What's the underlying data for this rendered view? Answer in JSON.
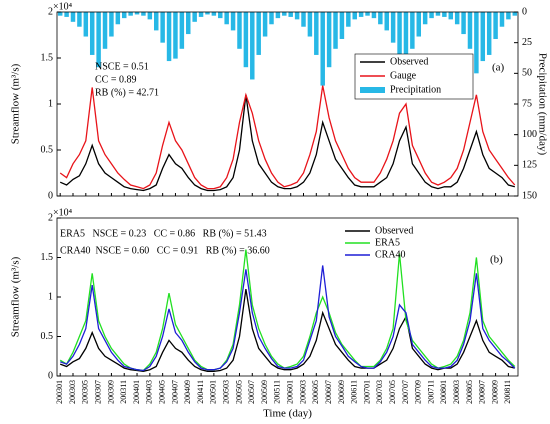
{
  "chart_data": [
    {
      "type": "line",
      "y_multiplier": "×10⁴",
      "y_label": "Streamflow (m³/s)",
      "y2_label": "Precipitation (mm/day)",
      "ylim": [
        0,
        2
      ],
      "yticks": [
        0,
        0.5,
        1,
        1.5,
        2
      ],
      "y2lim": [
        150,
        0
      ],
      "y2ticks": [
        0,
        25,
        50,
        75,
        100,
        125,
        150
      ],
      "annotations": [
        "NSCE = 0.51",
        "CC = 0.89",
        "RB (%) = 42.71"
      ],
      "panel_label": "(a)",
      "series": [
        {
          "name": "Observed",
          "color": "#000000",
          "values": [
            0.15,
            0.12,
            0.18,
            0.22,
            0.35,
            0.55,
            0.35,
            0.25,
            0.2,
            0.15,
            0.1,
            0.08,
            0.07,
            0.06,
            0.08,
            0.12,
            0.3,
            0.45,
            0.35,
            0.3,
            0.2,
            0.12,
            0.08,
            0.06,
            0.06,
            0.07,
            0.1,
            0.2,
            0.5,
            1.1,
            0.6,
            0.35,
            0.25,
            0.15,
            0.1,
            0.08,
            0.08,
            0.1,
            0.15,
            0.25,
            0.45,
            0.8,
            0.6,
            0.4,
            0.3,
            0.2,
            0.12,
            0.1,
            0.1,
            0.1,
            0.15,
            0.2,
            0.35,
            0.6,
            0.75,
            0.35,
            0.25,
            0.15,
            0.1,
            0.08,
            0.1,
            0.1,
            0.15,
            0.3,
            0.5,
            0.7,
            0.45,
            0.3,
            0.25,
            0.2,
            0.12,
            0.1
          ]
        },
        {
          "name": "Gauge",
          "color": "#e8141a",
          "values": [
            0.25,
            0.2,
            0.35,
            0.45,
            0.6,
            1.18,
            0.6,
            0.45,
            0.35,
            0.25,
            0.18,
            0.12,
            0.1,
            0.08,
            0.12,
            0.25,
            0.55,
            0.8,
            0.6,
            0.5,
            0.35,
            0.2,
            0.12,
            0.08,
            0.08,
            0.1,
            0.2,
            0.4,
            0.8,
            1.1,
            0.9,
            0.6,
            0.4,
            0.25,
            0.15,
            0.1,
            0.12,
            0.15,
            0.25,
            0.45,
            0.7,
            1.2,
            0.85,
            0.6,
            0.45,
            0.3,
            0.2,
            0.15,
            0.15,
            0.15,
            0.25,
            0.4,
            0.6,
            0.9,
            1.0,
            0.55,
            0.4,
            0.25,
            0.15,
            0.12,
            0.15,
            0.2,
            0.3,
            0.5,
            0.8,
            1.1,
            0.7,
            0.5,
            0.4,
            0.3,
            0.2,
            0.12
          ]
        },
        {
          "name": "Precipitation",
          "color": "#27b8e6",
          "kind": "bar",
          "axis": "y2",
          "values": [
            3,
            4,
            8,
            12,
            20,
            35,
            45,
            30,
            20,
            10,
            5,
            3,
            2,
            3,
            6,
            15,
            25,
            40,
            38,
            30,
            18,
            8,
            4,
            2,
            3,
            5,
            10,
            15,
            30,
            45,
            55,
            35,
            20,
            10,
            5,
            3,
            4,
            6,
            12,
            20,
            35,
            60,
            45,
            30,
            22,
            12,
            6,
            4,
            3,
            5,
            10,
            15,
            25,
            40,
            50,
            30,
            20,
            10,
            5,
            3,
            4,
            6,
            10,
            18,
            30,
            50,
            40,
            35,
            22,
            12,
            6,
            3
          ]
        }
      ]
    },
    {
      "type": "line",
      "y_multiplier": "×10⁴",
      "y_label": "Streamflow (m³/s)",
      "x_label": "Time (day)",
      "ylim": [
        0,
        2
      ],
      "yticks": [
        0,
        0.5,
        1,
        1.5,
        2
      ],
      "annotations": [
        "ERA5   NSCE = 0.23   CC = 0.86   RB (%) = 51.43",
        "CRA40  NSCE = 0.60   CC = 0.91   RB (%) = 36.60"
      ],
      "panel_label": "(b)",
      "categories": [
        "200301",
        null,
        "200303",
        null,
        "200305",
        null,
        "200307",
        null,
        "200309",
        null,
        "200311",
        null,
        "200401",
        null,
        "200403",
        null,
        "200405",
        null,
        "200407",
        null,
        "200409",
        null,
        "200411",
        null,
        "200501",
        null,
        "200503",
        null,
        "200505",
        null,
        "200507",
        null,
        "200509",
        null,
        "200511",
        null,
        "200601",
        null,
        "200603",
        null,
        "200605",
        null,
        "200607",
        null,
        "200609",
        null,
        "200611",
        null,
        "200701",
        null,
        "200703",
        null,
        "200705",
        null,
        "200707",
        null,
        "200709",
        null,
        "200711",
        null,
        "200801",
        null,
        "200803",
        null,
        "200805",
        null,
        "200807",
        null,
        "200809",
        null,
        "200811",
        null
      ],
      "series": [
        {
          "name": "Observed",
          "color": "#000000",
          "values": [
            0.15,
            0.12,
            0.18,
            0.22,
            0.35,
            0.55,
            0.35,
            0.25,
            0.2,
            0.15,
            0.1,
            0.08,
            0.07,
            0.06,
            0.08,
            0.12,
            0.3,
            0.45,
            0.35,
            0.3,
            0.2,
            0.12,
            0.08,
            0.06,
            0.06,
            0.07,
            0.1,
            0.2,
            0.5,
            1.1,
            0.6,
            0.35,
            0.25,
            0.15,
            0.1,
            0.08,
            0.08,
            0.1,
            0.15,
            0.25,
            0.45,
            0.8,
            0.6,
            0.4,
            0.3,
            0.2,
            0.12,
            0.1,
            0.1,
            0.1,
            0.15,
            0.2,
            0.35,
            0.6,
            0.75,
            0.35,
            0.25,
            0.15,
            0.1,
            0.08,
            0.1,
            0.1,
            0.15,
            0.3,
            0.5,
            0.7,
            0.45,
            0.3,
            0.25,
            0.2,
            0.12,
            0.1
          ]
        },
        {
          "name": "ERA5",
          "color": "#22e022",
          "values": [
            0.2,
            0.15,
            0.3,
            0.5,
            0.7,
            1.3,
            0.7,
            0.5,
            0.35,
            0.25,
            0.15,
            0.1,
            0.08,
            0.07,
            0.15,
            0.3,
            0.6,
            1.05,
            0.65,
            0.5,
            0.35,
            0.2,
            0.12,
            0.08,
            0.08,
            0.1,
            0.2,
            0.4,
            0.9,
            1.6,
            0.9,
            0.6,
            0.4,
            0.25,
            0.15,
            0.1,
            0.12,
            0.15,
            0.25,
            0.5,
            0.8,
            1.0,
            0.8,
            0.55,
            0.4,
            0.3,
            0.2,
            0.12,
            0.12,
            0.12,
            0.2,
            0.35,
            0.6,
            1.55,
            0.7,
            0.45,
            0.35,
            0.25,
            0.15,
            0.1,
            0.12,
            0.15,
            0.25,
            0.45,
            0.8,
            1.5,
            0.7,
            0.5,
            0.4,
            0.3,
            0.2,
            0.12
          ]
        },
        {
          "name": "CRA40",
          "color": "#1f1fd6",
          "values": [
            0.18,
            0.15,
            0.25,
            0.4,
            0.6,
            1.15,
            0.6,
            0.45,
            0.3,
            0.2,
            0.12,
            0.1,
            0.08,
            0.07,
            0.12,
            0.25,
            0.5,
            0.85,
            0.55,
            0.45,
            0.3,
            0.18,
            0.1,
            0.08,
            0.08,
            0.1,
            0.18,
            0.35,
            0.8,
            1.35,
            0.8,
            0.5,
            0.35,
            0.22,
            0.12,
            0.1,
            0.1,
            0.12,
            0.2,
            0.45,
            0.7,
            1.4,
            0.75,
            0.5,
            0.38,
            0.25,
            0.18,
            0.12,
            0.1,
            0.1,
            0.18,
            0.3,
            0.5,
            0.9,
            0.8,
            0.4,
            0.3,
            0.2,
            0.12,
            0.1,
            0.1,
            0.12,
            0.2,
            0.4,
            0.7,
            1.3,
            0.6,
            0.45,
            0.35,
            0.25,
            0.18,
            0.1
          ]
        }
      ]
    }
  ]
}
